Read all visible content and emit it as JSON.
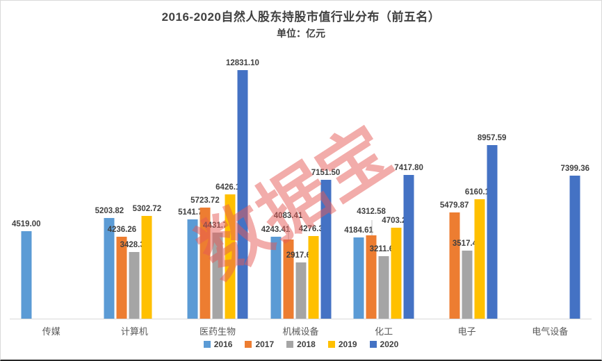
{
  "title": "2016-2020自然人股东持股市值行业分布（前五名）",
  "subtitle": "单位：亿元",
  "watermark": "数据宝",
  "chart_data": {
    "type": "bar",
    "title": "2016-2020自然人股东持股市值行业分布（前五名）",
    "unit_label": "单位：亿元",
    "categories": [
      "传媒",
      "计算机",
      "医药生物",
      "机械设备",
      "化工",
      "电子",
      "电气设备"
    ],
    "series": [
      {
        "name": "2016",
        "color": "#5B9BD5",
        "values": [
          4519.0,
          5203.82,
          5141.73,
          4243.41,
          4184.61,
          null,
          null
        ]
      },
      {
        "name": "2017",
        "color": "#ED7D31",
        "values": [
          null,
          4236.26,
          5723.72,
          4083.41,
          4312.58,
          5479.87,
          null
        ]
      },
      {
        "name": "2018",
        "color": "#A5A5A5",
        "values": [
          null,
          3428.33,
          4431.79,
          2917.62,
          3211.64,
          3517.4,
          null
        ]
      },
      {
        "name": "2019",
        "color": "#FFC000",
        "values": [
          null,
          5302.72,
          6426.19,
          4276.31,
          4703.23,
          6160.18,
          null
        ]
      },
      {
        "name": "2020",
        "color": "#4472C4",
        "values": [
          null,
          null,
          12831.1,
          7151.5,
          7417.8,
          8957.59,
          7399.36
        ]
      }
    ],
    "value_labels_shown": true,
    "value_label_decimals": 2,
    "ylim": [
      0,
      12831.1
    ],
    "grid": false,
    "legend_position": "bottom",
    "raised_labels": [
      {
        "series": "2017",
        "category": "机械设备"
      },
      {
        "series": "2017",
        "category": "化工"
      }
    ]
  }
}
